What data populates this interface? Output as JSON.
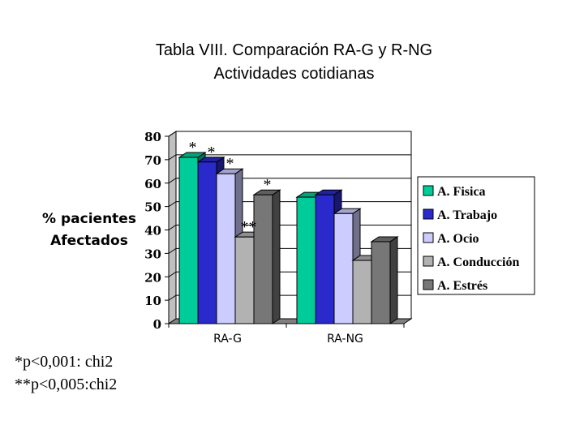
{
  "chart_data": {
    "type": "bar",
    "title": "Tabla VIII. Comparación RA-G y R-NG",
    "subtitle": "Actividades cotidianas",
    "ylabel_lines": [
      "% pacientes",
      "Afectados"
    ],
    "categories": [
      "RA-G",
      "RA-NG"
    ],
    "yticks": [
      "0",
      "10",
      "20",
      "30",
      "40",
      "50",
      "60",
      "70",
      "80"
    ],
    "ylim": [
      0,
      80
    ],
    "grid": true,
    "legend_position": "right",
    "series": [
      {
        "name": "A. Fisica",
        "values": [
          71,
          54
        ],
        "color": "#00cc99"
      },
      {
        "name": "A. Trabajo",
        "values": [
          69,
          55
        ],
        "color": "#2929cc"
      },
      {
        "name": "A. Ocio",
        "values": [
          64,
          47
        ],
        "color": "#ccccff"
      },
      {
        "name": "A. Conducción",
        "values": [
          37,
          27
        ],
        "color": "#b2b2b2"
      },
      {
        "name": "A. Estrés",
        "values": [
          55,
          35
        ],
        "color": "#777777"
      }
    ],
    "annotations": [
      {
        "category": 0,
        "series": 0,
        "text": "*"
      },
      {
        "category": 0,
        "series": 1,
        "text": "*"
      },
      {
        "category": 0,
        "series": 2,
        "text": "*"
      },
      {
        "category": 0,
        "series": 3,
        "text": "**"
      },
      {
        "category": 0,
        "series": 4,
        "text": "*"
      }
    ]
  },
  "footnotes": [
    "*p<0,001: chi2",
    "**p<0,005:chi2"
  ]
}
